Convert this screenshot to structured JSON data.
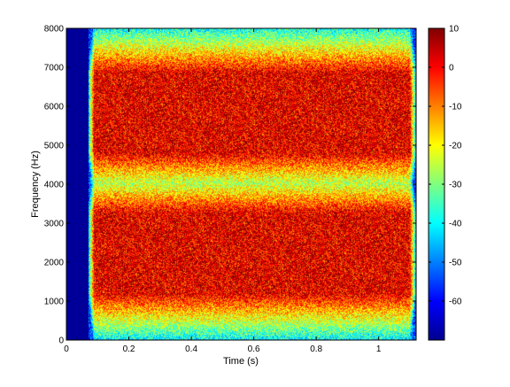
{
  "chart_data": {
    "type": "heatmap",
    "title": "",
    "xlabel": "Time (s)",
    "ylabel": "Frequency (Hz)",
    "xlim": [
      0,
      1.12
    ],
    "ylim": [
      0,
      8000
    ],
    "x_ticks": [
      0,
      0.2,
      0.4,
      0.6,
      0.8,
      1
    ],
    "x_tick_labels": [
      "0",
      "0.2",
      "0.4",
      "0.6",
      "0.8",
      "1"
    ],
    "y_ticks": [
      0,
      1000,
      2000,
      3000,
      4000,
      5000,
      6000,
      7000,
      8000
    ],
    "y_tick_labels": [
      "0",
      "1000",
      "2000",
      "3000",
      "4000",
      "5000",
      "6000",
      "7000",
      "8000"
    ],
    "colormap": "jet",
    "clim": [
      -70,
      10
    ],
    "colorbar_ticks": [
      10,
      0,
      -10,
      -20,
      -30,
      -40,
      -50,
      -60
    ],
    "colorbar_tick_labels": [
      "10",
      "0",
      "-10",
      "-20",
      "-30",
      "-40",
      "-50",
      "-60"
    ],
    "background_level_db": -55,
    "leading_silence_end_s": 0.07,
    "silence_level_db": -68,
    "bands": [
      {
        "t_start": 0.09,
        "t_end": 1.1,
        "f_low": 4800,
        "f_high": 6850,
        "level_db": 2
      },
      {
        "t_start": 0.09,
        "t_end": 1.1,
        "f_low": 1200,
        "f_high": 3250,
        "level_db": 2
      }
    ]
  }
}
